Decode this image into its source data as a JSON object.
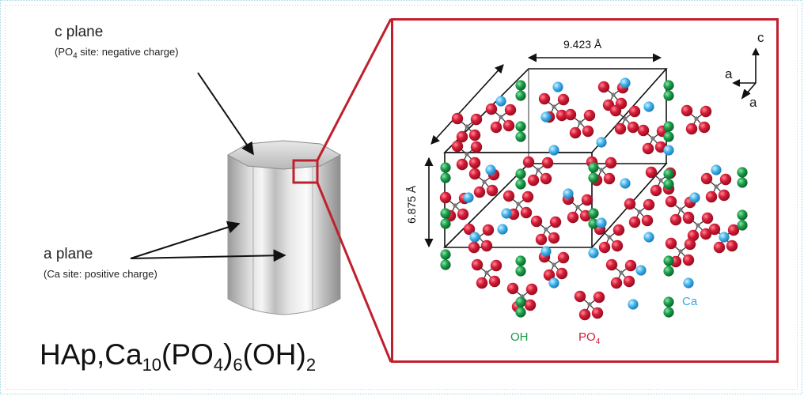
{
  "c_plane": {
    "title": "c plane",
    "sub_prefix": "(PO",
    "sub_sub": "4",
    "sub_suffix": " site: negative charge)"
  },
  "a_plane": {
    "title": "a plane",
    "sub": "(Ca site: positive charge)"
  },
  "formula": {
    "prefix": "HAp,Ca",
    "ca_sub": "10",
    "po": "(PO",
    "po_sub": "4",
    "close": ")",
    "six": "6",
    "oh": "(OH)",
    "two": "2"
  },
  "lattice": {
    "dim_a": "9.423 Å",
    "dim_c": "6.875 Å",
    "axis_c": "c",
    "axis_a1": "a",
    "axis_a2": "a"
  },
  "legend": {
    "oh": "OH",
    "po": "PO",
    "po_sub": "4",
    "ca": "Ca"
  },
  "colors": {
    "highlight": "#c0202c",
    "oxygen_red": "#d01c36",
    "oh_green": "#1a9a4a",
    "ca_blue": "#3aa9e0"
  }
}
